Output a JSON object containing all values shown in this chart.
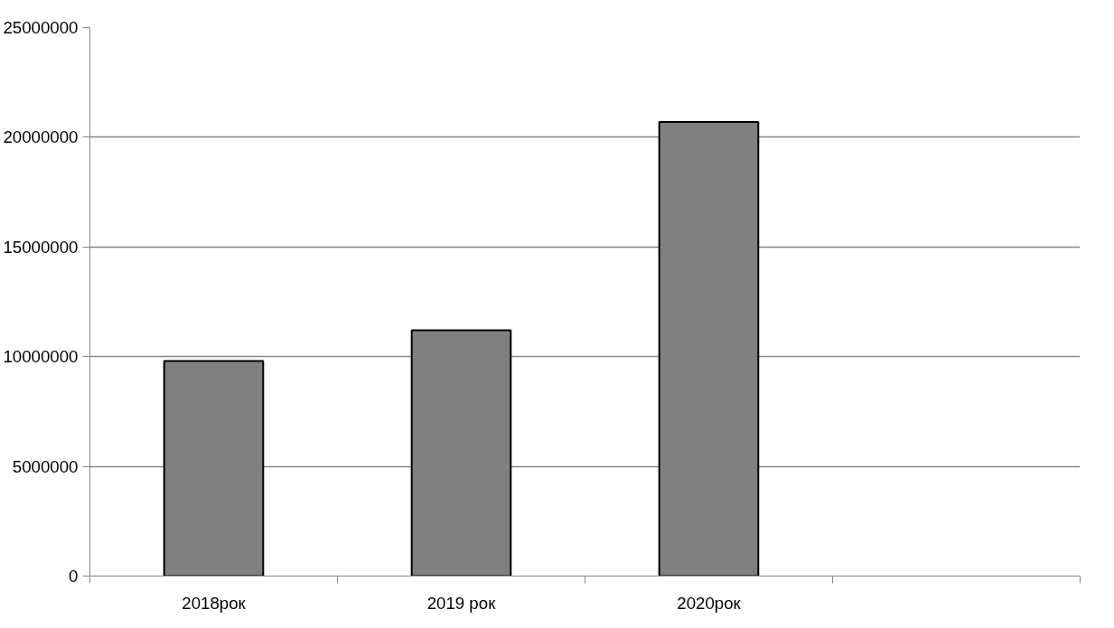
{
  "chart_data": {
    "type": "bar",
    "categories": [
      "2018рок",
      "2019 рок",
      "2020рок",
      null
    ],
    "values": [
      9800000,
      11200000,
      20700000,
      null
    ],
    "color": "#808080",
    "ylim": [
      0,
      25000000
    ],
    "yticks": [
      0,
      5000000,
      10000000,
      15000000,
      20000000,
      25000000
    ],
    "grid": "y"
  }
}
